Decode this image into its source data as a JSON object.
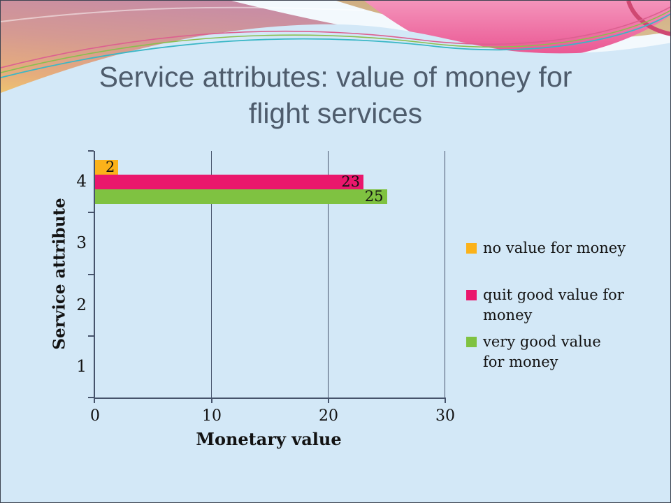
{
  "slide": {
    "background_color": "#d3e8f7",
    "title": {
      "line1": "Service attributes: value of money for",
      "line2": "flight services",
      "color": "#4e5c6c"
    }
  },
  "chart_data": {
    "type": "bar",
    "orientation": "horizontal",
    "title": "",
    "xlabel": "Monetary value",
    "ylabel": "Service attribute",
    "xlim": [
      0,
      30
    ],
    "x_ticks": [
      0,
      10,
      20,
      30
    ],
    "grid": true,
    "legend_position": "right",
    "data_labels": "inside-end",
    "axis_color": "#46536b",
    "text_color": "#121212",
    "categories_top_to_bottom": [
      "4",
      "3",
      "2",
      "1"
    ],
    "series": [
      {
        "name": "no value for money",
        "color": "#fbb21a",
        "values": [
          2,
          null,
          null,
          null
        ]
      },
      {
        "name": "quit good value for money",
        "color": "#ea176c",
        "values": [
          23,
          null,
          null,
          null
        ]
      },
      {
        "name": "very good value for money",
        "color": "#7fc241",
        "values": [
          25,
          null,
          null,
          null
        ]
      }
    ]
  }
}
